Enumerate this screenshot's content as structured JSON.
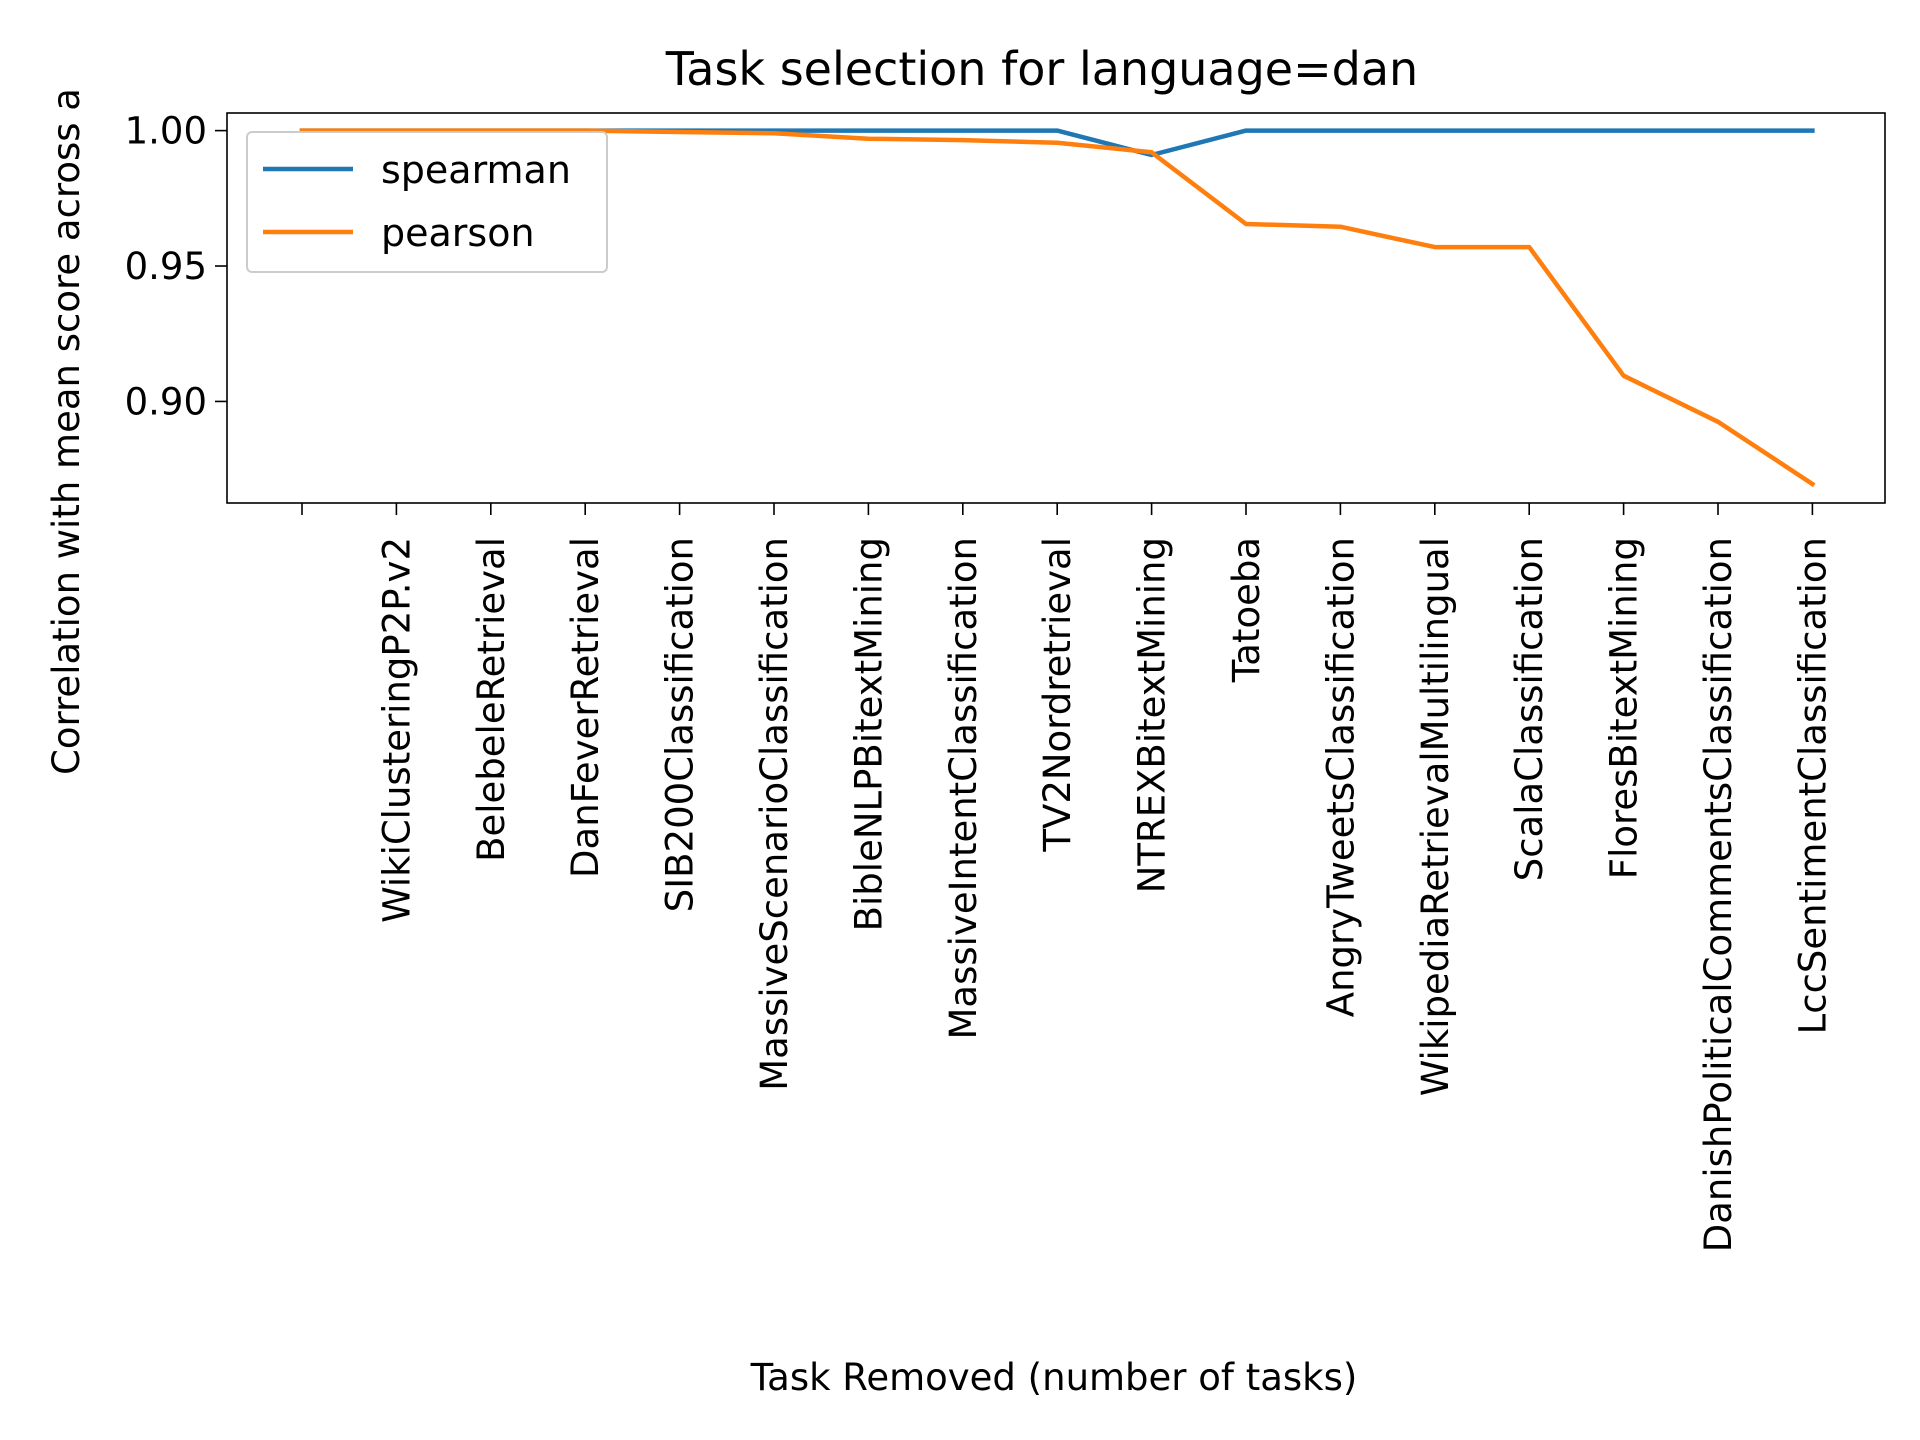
{
  "chart_data": {
    "type": "line",
    "title": "Task selection for language=dan",
    "xlabel": "Task Removed (number of tasks)",
    "ylabel": "Correlation with mean score across a",
    "ylim": [
      0.8625,
      1.0065
    ],
    "yticks": [
      0.9,
      0.95,
      1.0
    ],
    "ytick_labels": [
      "0.90",
      "0.95",
      "1.00"
    ],
    "categories": [
      "",
      "WikiClusteringP2P.v2",
      "BelebeleRetrieval",
      "DanFeverRetrieval",
      "SIB200Classification",
      "MassiveScenarioClassification",
      "BibleNLPBitextMining",
      "MassiveIntentClassification",
      "TV2Nordretrieval",
      "NTREXBitextMining",
      "Tatoeba",
      "AngryTweetsClassification",
      "WikipediaRetrievalMultilingual",
      "ScalaClassification",
      "FloresBitextMining",
      "DanishPoliticalCommentsClassification",
      "LccSentimentClassification"
    ],
    "series": [
      {
        "name": "spearman",
        "color": "#1f77b4",
        "values": [
          1.0,
          1.0,
          1.0,
          1.0,
          1.0,
          1.0,
          1.0,
          1.0,
          1.0,
          0.991,
          1.0,
          1.0,
          1.0,
          1.0,
          1.0,
          1.0,
          1.0
        ]
      },
      {
        "name": "pearson",
        "color": "#ff7f0e",
        "values": [
          1.0,
          1.0,
          1.0,
          1.0,
          0.9995,
          0.999,
          0.997,
          0.9965,
          0.9955,
          0.992,
          0.9655,
          0.9645,
          0.957,
          0.957,
          0.9095,
          0.8925,
          0.8695
        ]
      }
    ],
    "legend_position": "top-left",
    "grid": false
  }
}
